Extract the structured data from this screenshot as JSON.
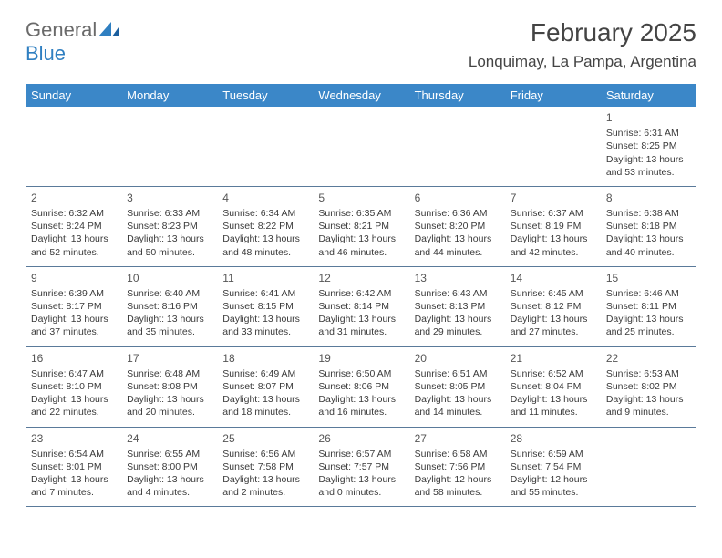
{
  "brand": {
    "part1": "General",
    "part2": "Blue"
  },
  "title": "February 2025",
  "location": "Lonquimay, La Pampa, Argentina",
  "colors": {
    "header_bg": "#3b87c8",
    "header_text": "#ffffff",
    "brand_gray": "#6a6a6a",
    "brand_blue": "#2f7fc1",
    "cell_text": "#3a3a3a",
    "border": "#5a7a9a",
    "alt_bg": "#f0f0f0"
  },
  "dayNames": [
    "Sunday",
    "Monday",
    "Tuesday",
    "Wednesday",
    "Thursday",
    "Friday",
    "Saturday"
  ],
  "weeks": [
    [
      null,
      null,
      null,
      null,
      null,
      null,
      {
        "n": "1",
        "sr": "Sunrise: 6:31 AM",
        "ss": "Sunset: 8:25 PM",
        "dl1": "Daylight: 13 hours",
        "dl2": "and 53 minutes."
      }
    ],
    [
      {
        "n": "2",
        "sr": "Sunrise: 6:32 AM",
        "ss": "Sunset: 8:24 PM",
        "dl1": "Daylight: 13 hours",
        "dl2": "and 52 minutes."
      },
      {
        "n": "3",
        "sr": "Sunrise: 6:33 AM",
        "ss": "Sunset: 8:23 PM",
        "dl1": "Daylight: 13 hours",
        "dl2": "and 50 minutes."
      },
      {
        "n": "4",
        "sr": "Sunrise: 6:34 AM",
        "ss": "Sunset: 8:22 PM",
        "dl1": "Daylight: 13 hours",
        "dl2": "and 48 minutes."
      },
      {
        "n": "5",
        "sr": "Sunrise: 6:35 AM",
        "ss": "Sunset: 8:21 PM",
        "dl1": "Daylight: 13 hours",
        "dl2": "and 46 minutes."
      },
      {
        "n": "6",
        "sr": "Sunrise: 6:36 AM",
        "ss": "Sunset: 8:20 PM",
        "dl1": "Daylight: 13 hours",
        "dl2": "and 44 minutes."
      },
      {
        "n": "7",
        "sr": "Sunrise: 6:37 AM",
        "ss": "Sunset: 8:19 PM",
        "dl1": "Daylight: 13 hours",
        "dl2": "and 42 minutes."
      },
      {
        "n": "8",
        "sr": "Sunrise: 6:38 AM",
        "ss": "Sunset: 8:18 PM",
        "dl1": "Daylight: 13 hours",
        "dl2": "and 40 minutes."
      }
    ],
    [
      {
        "n": "9",
        "sr": "Sunrise: 6:39 AM",
        "ss": "Sunset: 8:17 PM",
        "dl1": "Daylight: 13 hours",
        "dl2": "and 37 minutes."
      },
      {
        "n": "10",
        "sr": "Sunrise: 6:40 AM",
        "ss": "Sunset: 8:16 PM",
        "dl1": "Daylight: 13 hours",
        "dl2": "and 35 minutes."
      },
      {
        "n": "11",
        "sr": "Sunrise: 6:41 AM",
        "ss": "Sunset: 8:15 PM",
        "dl1": "Daylight: 13 hours",
        "dl2": "and 33 minutes."
      },
      {
        "n": "12",
        "sr": "Sunrise: 6:42 AM",
        "ss": "Sunset: 8:14 PM",
        "dl1": "Daylight: 13 hours",
        "dl2": "and 31 minutes."
      },
      {
        "n": "13",
        "sr": "Sunrise: 6:43 AM",
        "ss": "Sunset: 8:13 PM",
        "dl1": "Daylight: 13 hours",
        "dl2": "and 29 minutes."
      },
      {
        "n": "14",
        "sr": "Sunrise: 6:45 AM",
        "ss": "Sunset: 8:12 PM",
        "dl1": "Daylight: 13 hours",
        "dl2": "and 27 minutes."
      },
      {
        "n": "15",
        "sr": "Sunrise: 6:46 AM",
        "ss": "Sunset: 8:11 PM",
        "dl1": "Daylight: 13 hours",
        "dl2": "and 25 minutes."
      }
    ],
    [
      {
        "n": "16",
        "sr": "Sunrise: 6:47 AM",
        "ss": "Sunset: 8:10 PM",
        "dl1": "Daylight: 13 hours",
        "dl2": "and 22 minutes."
      },
      {
        "n": "17",
        "sr": "Sunrise: 6:48 AM",
        "ss": "Sunset: 8:08 PM",
        "dl1": "Daylight: 13 hours",
        "dl2": "and 20 minutes."
      },
      {
        "n": "18",
        "sr": "Sunrise: 6:49 AM",
        "ss": "Sunset: 8:07 PM",
        "dl1": "Daylight: 13 hours",
        "dl2": "and 18 minutes."
      },
      {
        "n": "19",
        "sr": "Sunrise: 6:50 AM",
        "ss": "Sunset: 8:06 PM",
        "dl1": "Daylight: 13 hours",
        "dl2": "and 16 minutes."
      },
      {
        "n": "20",
        "sr": "Sunrise: 6:51 AM",
        "ss": "Sunset: 8:05 PM",
        "dl1": "Daylight: 13 hours",
        "dl2": "and 14 minutes."
      },
      {
        "n": "21",
        "sr": "Sunrise: 6:52 AM",
        "ss": "Sunset: 8:04 PM",
        "dl1": "Daylight: 13 hours",
        "dl2": "and 11 minutes."
      },
      {
        "n": "22",
        "sr": "Sunrise: 6:53 AM",
        "ss": "Sunset: 8:02 PM",
        "dl1": "Daylight: 13 hours",
        "dl2": "and 9 minutes."
      }
    ],
    [
      {
        "n": "23",
        "sr": "Sunrise: 6:54 AM",
        "ss": "Sunset: 8:01 PM",
        "dl1": "Daylight: 13 hours",
        "dl2": "and 7 minutes."
      },
      {
        "n": "24",
        "sr": "Sunrise: 6:55 AM",
        "ss": "Sunset: 8:00 PM",
        "dl1": "Daylight: 13 hours",
        "dl2": "and 4 minutes."
      },
      {
        "n": "25",
        "sr": "Sunrise: 6:56 AM",
        "ss": "Sunset: 7:58 PM",
        "dl1": "Daylight: 13 hours",
        "dl2": "and 2 minutes."
      },
      {
        "n": "26",
        "sr": "Sunrise: 6:57 AM",
        "ss": "Sunset: 7:57 PM",
        "dl1": "Daylight: 13 hours",
        "dl2": "and 0 minutes."
      },
      {
        "n": "27",
        "sr": "Sunrise: 6:58 AM",
        "ss": "Sunset: 7:56 PM",
        "dl1": "Daylight: 12 hours",
        "dl2": "and 58 minutes."
      },
      {
        "n": "28",
        "sr": "Sunrise: 6:59 AM",
        "ss": "Sunset: 7:54 PM",
        "dl1": "Daylight: 12 hours",
        "dl2": "and 55 minutes."
      },
      null
    ]
  ]
}
